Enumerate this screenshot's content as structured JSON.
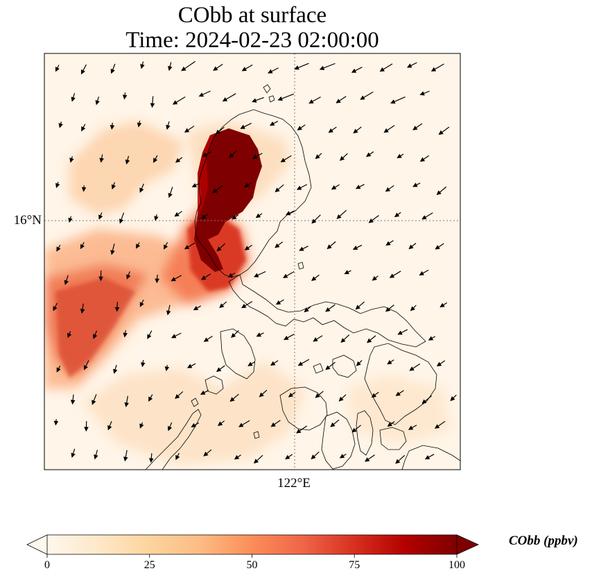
{
  "title": {
    "line1": "CObb at surface",
    "line2": "Time: 2024-02-23 02:00:00"
  },
  "map": {
    "lat_tick_label": "16°N",
    "lon_tick_label": "122°E",
    "gridline_style": "dotted",
    "background_color": "#fff5e8"
  },
  "colorbar": {
    "label": "CObb (ppbv)",
    "ticks": [
      "0",
      "25",
      "50",
      "75",
      "100"
    ],
    "tick_values": [
      0,
      25,
      50,
      75,
      100
    ],
    "min": 0,
    "max": 100,
    "extend": "both",
    "colormap": "OrRd",
    "colors": [
      "#fff7ec",
      "#fee8c8",
      "#fdd49e",
      "#fdbb84",
      "#fc8d59",
      "#ef6548",
      "#d7301f",
      "#b30000",
      "#7f0000"
    ]
  }
}
